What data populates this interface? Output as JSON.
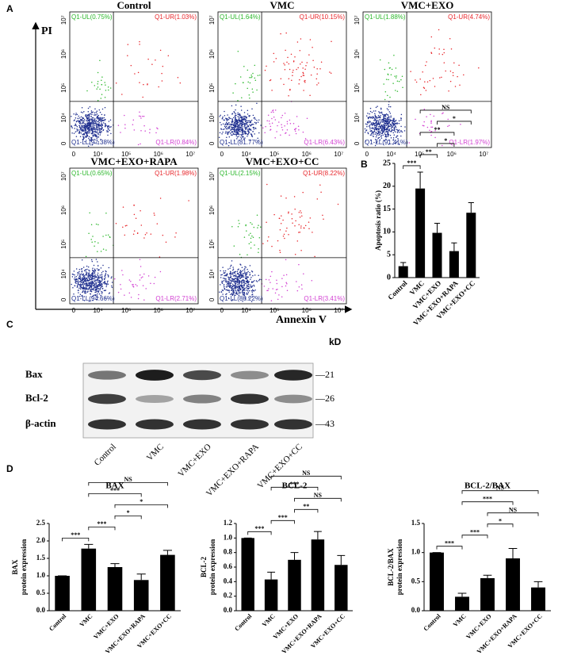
{
  "panel_labels": [
    "A",
    "B",
    "C",
    "D"
  ],
  "flow": {
    "y_axis_label": "PI",
    "x_axis_label": "Annexin V",
    "axis_tick_labels": [
      "0",
      "10⁴",
      "10⁵",
      "10⁶",
      "10⁷"
    ],
    "colors": [
      "#2db82d",
      "#e8262b",
      "#1f2f8f",
      "#d23fd2"
    ],
    "plots": [
      {
        "title": "Control",
        "values": [
          0.75,
          1.03,
          97.38,
          0.84
        ],
        "value_labels": [
          "Q1-UL(0.75%)",
          "Q1-UR(1.03%)",
          "Q1-LL(97.38%)",
          "Q1-LR(0.84%)"
        ]
      },
      {
        "title": "VMC",
        "values": [
          1.64,
          10.15,
          81.77,
          6.43
        ],
        "value_labels": [
          "Q1-UL(1.64%)",
          "Q1-UR(10.15%)",
          "Q1-LL(81.77%)",
          "Q1-LR(6.43%)"
        ]
      },
      {
        "title": "VMC+EXO",
        "values": [
          1.88,
          4.74,
          91.41,
          1.97
        ],
        "value_labels": [
          "Q1-UL(1.88%)",
          "Q1-UR(4.74%)",
          "Q1-LL(91.41%)",
          "Q1-LR(1.97%)"
        ]
      },
      {
        "title": "VMC+EXO+RAPA",
        "values": [
          0.65,
          1.98,
          94.66,
          2.71
        ],
        "value_labels": [
          "Q1-UL(0.65%)",
          "Q1-UR(1.98%)",
          "Q1-LL(94.66%)",
          "Q1-LR(2.71%)"
        ]
      },
      {
        "title": "VMC+EXO+CC",
        "values": [
          2.15,
          8.22,
          86.22,
          3.41
        ],
        "value_labels": [
          "Q1-UL(2.15%)",
          "Q1-UR(8.22%)",
          "Q1-LL(86.22%)",
          "Q1-LR(3.41%)"
        ]
      }
    ]
  },
  "western": {
    "row_labels": [
      "Bax",
      "Bcl-2",
      "β-actin"
    ],
    "kd_header": "kD",
    "kd_labels": [
      "—21",
      "—26",
      "—43"
    ],
    "lanes": [
      "Control",
      "VMC",
      "VMC+EXO",
      "VMC+EXO+RAPA",
      "VMC+EXO+CC"
    ]
  },
  "chart_data": [
    {
      "type": "bar",
      "ylabel": [
        "Apoptosis ratio (%)"
      ],
      "categories": [
        "Control",
        "VMC",
        "VMC+EXO",
        "VMC+EXO+RAPA",
        "VMC+EXO+CC"
      ],
      "values": [
        2.5,
        19.5,
        9.8,
        5.8,
        14.2
      ],
      "errors": [
        0.8,
        3.6,
        2.1,
        1.8,
        2.2
      ],
      "color": "#000000",
      "ylim": [
        0,
        25
      ],
      "yticks": [
        0,
        5,
        10,
        15,
        20,
        25
      ],
      "brackets": [
        {
          "from": "Control",
          "to": "VMC",
          "label": "***"
        },
        {
          "from": "VMC",
          "to": "VMC+EXO+CC",
          "label": "NS"
        },
        {
          "from": "VMC",
          "to": "VMC+EXO+RAPA",
          "label": "**"
        },
        {
          "from": "VMC",
          "to": "VMC+EXO",
          "label": "**"
        },
        {
          "from": "VMC+EXO",
          "to": "VMC+EXO+CC",
          "label": "*"
        },
        {
          "from": "VMC+EXO",
          "to": "VMC+EXO+RAPA",
          "label": "*"
        }
      ]
    },
    {
      "type": "bar",
      "title": "BAX",
      "ylabel": [
        "BAX",
        "protein expression"
      ],
      "categories": [
        "Control",
        "VMC",
        "VMC+EXO",
        "VMC+EXO+RAPA",
        "VMC+EXO+CC"
      ],
      "values": [
        1.0,
        1.78,
        1.25,
        0.88,
        1.6
      ],
      "errors": [
        0,
        0.12,
        0.1,
        0.17,
        0.13
      ],
      "color": "#000000",
      "ylim": [
        0,
        2.5
      ],
      "yticks": [
        {
          "value": 0,
          "label": "0.0"
        },
        {
          "value": 0.5,
          "label": "0.5"
        },
        {
          "value": 1,
          "label": "1.0"
        },
        {
          "value": 1.5,
          "label": "1.5"
        },
        {
          "value": 2,
          "label": "2.0"
        },
        {
          "value": 2.5,
          "label": "2.5"
        }
      ],
      "brackets": [
        {
          "from": "Control",
          "to": "VMC",
          "label": "***"
        },
        {
          "from": "VMC",
          "to": "VMC+EXO+CC",
          "label": "NS"
        },
        {
          "from": "VMC+EXO",
          "to": "VMC+EXO+CC",
          "label": "*"
        },
        {
          "from": "VMC",
          "to": "VMC+EXO",
          "label": "***"
        },
        {
          "from": "VMC",
          "to": "VMC+EXO+RAPA",
          "label": "***"
        },
        {
          "from": "VMC+EXO",
          "to": "VMC+EXO+RAPA",
          "label": "*"
        }
      ]
    },
    {
      "type": "bar",
      "title": "BCL-2",
      "ylabel": [
        "BCL-2",
        "protein expression"
      ],
      "categories": [
        "Control",
        "VMC",
        "VMC+EXO",
        "VMC+EXO+RAPA",
        "VMC+EXO+CC"
      ],
      "values": [
        1.0,
        0.43,
        0.7,
        0.98,
        0.63
      ],
      "errors": [
        0,
        0.1,
        0.1,
        0.11,
        0.13
      ],
      "color": "#000000",
      "ylim": [
        0,
        1.2
      ],
      "yticks": [
        {
          "value": 0,
          "label": "0.0"
        },
        {
          "value": 0.2,
          "label": "0.2"
        },
        {
          "value": 0.4,
          "label": "0.4"
        },
        {
          "value": 0.6,
          "label": "0.6"
        },
        {
          "value": 0.8,
          "label": "0.8"
        },
        {
          "value": 1,
          "label": "1.0"
        },
        {
          "value": 1.2,
          "label": "1.2"
        }
      ],
      "brackets": [
        {
          "from": "Control",
          "to": "VMC",
          "label": "***"
        },
        {
          "from": "VMC",
          "to": "VMC+EXO+CC",
          "label": "NS"
        },
        {
          "from": "VMC+EXO",
          "to": "VMC+EXO+CC",
          "label": "NS"
        },
        {
          "from": "VMC",
          "to": "VMC+EXO",
          "label": "***"
        },
        {
          "from": "VMC",
          "to": "VMC+EXO+RAPA",
          "label": "***"
        },
        {
          "from": "VMC+EXO",
          "to": "VMC+EXO+RAPA",
          "label": "**"
        }
      ]
    },
    {
      "type": "bar",
      "title": "BCL-2/BAX",
      "ylabel": [
        "BCL-2/BAX",
        "protein expression"
      ],
      "categories": [
        "Control",
        "VMC",
        "VMC+EXO",
        "VMC+EXO+RAPA",
        "VMC+EXO+CC"
      ],
      "values": [
        1.0,
        0.24,
        0.56,
        0.9,
        0.4
      ],
      "errors": [
        0,
        0.06,
        0.05,
        0.17,
        0.1
      ],
      "color": "#000000",
      "ylim": [
        0,
        1.5
      ],
      "yticks": [
        {
          "value": 0,
          "label": "0.0"
        },
        {
          "value": 0.5,
          "label": "0.5"
        },
        {
          "value": 1,
          "label": "1.0"
        },
        {
          "value": 1.5,
          "label": "1.5"
        }
      ],
      "brackets": [
        {
          "from": "Control",
          "to": "VMC",
          "label": "***"
        },
        {
          "from": "VMC",
          "to": "VMC+EXO+CC",
          "label": "NS"
        },
        {
          "from": "VMC+EXO",
          "to": "VMC+EXO+CC",
          "label": "NS"
        },
        {
          "from": "VMC",
          "to": "VMC+EXO",
          "label": "***"
        },
        {
          "from": "VMC",
          "to": "VMC+EXO+RAPA",
          "label": "***"
        },
        {
          "from": "VMC+EXO",
          "to": "VMC+EXO+RAPA",
          "label": "*"
        }
      ]
    }
  ]
}
